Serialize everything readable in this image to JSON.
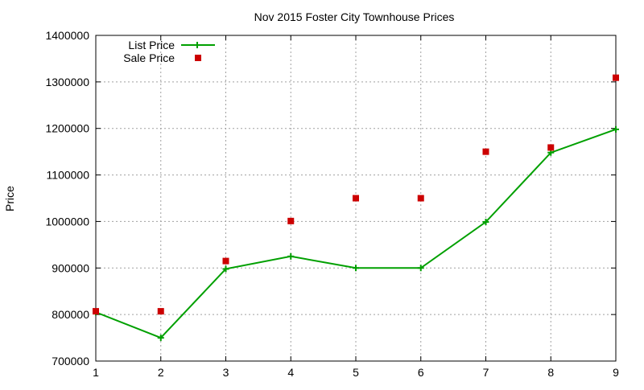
{
  "chart_data": {
    "type": "line",
    "title": "Nov 2015 Foster City Townhouse Prices",
    "xlabel": "",
    "ylabel": "Price",
    "xlim": [
      1,
      9
    ],
    "ylim": [
      700000,
      1400000
    ],
    "x_ticks": [
      "1",
      "2",
      "3",
      "4",
      "5",
      "6",
      "7",
      "8",
      "9"
    ],
    "y_ticks": [
      "700000",
      "800000",
      "900000",
      "1000000",
      "1100000",
      "1200000",
      "1300000",
      "1400000"
    ],
    "grid": true,
    "legend_position": "top-left",
    "x": [
      1,
      2,
      3,
      4,
      5,
      6,
      7,
      8,
      9
    ],
    "series": [
      {
        "name": "List Price",
        "style": "linespoints",
        "color": "#00a000",
        "values": [
          805000,
          750000,
          898000,
          925000,
          900000,
          900000,
          999000,
          1148000,
          1198000
        ]
      },
      {
        "name": "Sale Price",
        "style": "points",
        "color": "#cc0000",
        "values": [
          807000,
          807000,
          915000,
          1001000,
          1050000,
          1050000,
          1150000,
          1159000,
          1309000
        ]
      }
    ]
  }
}
